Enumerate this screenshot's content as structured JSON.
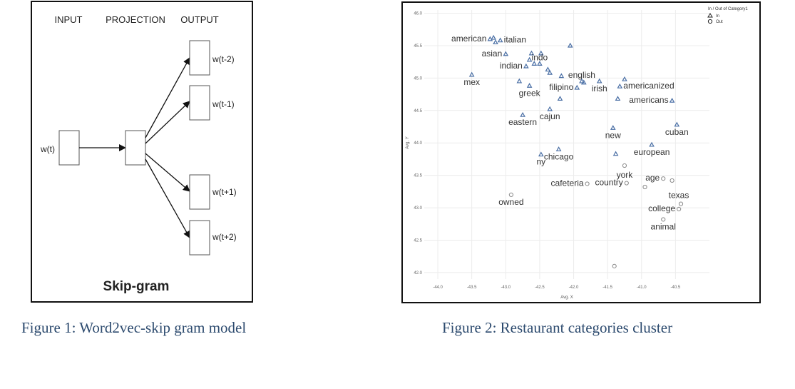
{
  "figure1": {
    "caption": "Figure 1: Word2vec-skip gram model",
    "headers": {
      "input": "INPUT",
      "projection": "PROJECTION",
      "output": "OUTPUT"
    },
    "input_label": "w(t)",
    "output_labels": [
      "w(t-2)",
      "w(t-1)",
      "w(t+1)",
      "w(t+2)"
    ],
    "title": "Skip-gram"
  },
  "figure2": {
    "caption": "Figure 2: Restaurant categories cluster",
    "chart_data": {
      "type": "scatter",
      "xlabel": "Avg. X",
      "ylabel": "Avg. Y",
      "xlim": [
        -44.2,
        -40.0
      ],
      "ylim": [
        41.9,
        46.05
      ],
      "x_ticks": [
        "-44.0",
        "-43.5",
        "-43.0",
        "-42.5",
        "-42.0",
        "-41.5",
        "-41.0",
        "-40.5"
      ],
      "y_ticks": [
        "42.0",
        "42.5",
        "43.0",
        "43.5",
        "44.0",
        "44.5",
        "45.0",
        "45.5",
        "46.0"
      ],
      "grid": true,
      "legend": {
        "title": "In / Out of Category1",
        "placement": "top-right",
        "entries": [
          {
            "name": "In",
            "marker": "triangle"
          },
          {
            "name": "Out",
            "marker": "circle"
          }
        ]
      },
      "series": [
        {
          "name": "In",
          "marker": "triangle",
          "color": "#4a6fa5",
          "points": [
            {
              "x": -43.23,
              "y": 45.6,
              "label": "american"
            },
            {
              "x": -43.18,
              "y": 45.62,
              "label": ""
            },
            {
              "x": -43.15,
              "y": 45.55,
              "label": ""
            },
            {
              "x": -43.08,
              "y": 45.58,
              "label": "italian"
            },
            {
              "x": -43.0,
              "y": 45.37,
              "label": "asian"
            },
            {
              "x": -42.62,
              "y": 45.38,
              "label": ""
            },
            {
              "x": -42.48,
              "y": 45.38,
              "label": ""
            },
            {
              "x": -42.65,
              "y": 45.28,
              "label": ""
            },
            {
              "x": -42.58,
              "y": 45.22,
              "label": ""
            },
            {
              "x": -42.5,
              "y": 45.22,
              "label": "indo"
            },
            {
              "x": -42.7,
              "y": 45.18,
              "label": "indian"
            },
            {
              "x": -42.38,
              "y": 45.13,
              "label": ""
            },
            {
              "x": -42.35,
              "y": 45.08,
              "label": ""
            },
            {
              "x": -42.05,
              "y": 45.5,
              "label": ""
            },
            {
              "x": -43.5,
              "y": 45.05,
              "label": "mex"
            },
            {
              "x": -42.8,
              "y": 44.95,
              "label": ""
            },
            {
              "x": -42.65,
              "y": 44.88,
              "label": "greek"
            },
            {
              "x": -42.18,
              "y": 45.03,
              "label": ""
            },
            {
              "x": -41.88,
              "y": 44.95,
              "label": "english"
            },
            {
              "x": -41.85,
              "y": 44.93,
              "label": ""
            },
            {
              "x": -41.95,
              "y": 44.85,
              "label": "filipino"
            },
            {
              "x": -41.62,
              "y": 44.95,
              "label": "irish"
            },
            {
              "x": -41.25,
              "y": 44.98,
              "label": ""
            },
            {
              "x": -41.32,
              "y": 44.87,
              "label": "americanized"
            },
            {
              "x": -42.2,
              "y": 44.68,
              "label": ""
            },
            {
              "x": -41.35,
              "y": 44.68,
              "label": ""
            },
            {
              "x": -40.55,
              "y": 44.65,
              "label": "americans"
            },
            {
              "x": -42.35,
              "y": 44.52,
              "label": "cajun"
            },
            {
              "x": -42.75,
              "y": 44.43,
              "label": "eastern"
            },
            {
              "x": -41.42,
              "y": 44.23,
              "label": "new"
            },
            {
              "x": -40.48,
              "y": 44.28,
              "label": "cuban"
            },
            {
              "x": -40.85,
              "y": 43.97,
              "label": "european"
            },
            {
              "x": -42.22,
              "y": 43.9,
              "label": "chicago"
            },
            {
              "x": -42.48,
              "y": 43.82,
              "label": "ny"
            },
            {
              "x": -41.38,
              "y": 43.83,
              "label": ""
            }
          ]
        },
        {
          "name": "Out",
          "marker": "circle",
          "color": "#8a8a8a",
          "points": [
            {
              "x": -41.25,
              "y": 43.65,
              "label": "york"
            },
            {
              "x": -41.22,
              "y": 43.38,
              "label": "country"
            },
            {
              "x": -41.8,
              "y": 43.37,
              "label": "cafeteria"
            },
            {
              "x": -40.68,
              "y": 43.45,
              "label": "age"
            },
            {
              "x": -40.55,
              "y": 43.42,
              "label": ""
            },
            {
              "x": -40.95,
              "y": 43.32,
              "label": ""
            },
            {
              "x": -42.92,
              "y": 43.2,
              "label": "owned"
            },
            {
              "x": -40.42,
              "y": 43.06,
              "label": "texas"
            },
            {
              "x": -40.45,
              "y": 42.98,
              "label": "college"
            },
            {
              "x": -40.68,
              "y": 42.82,
              "label": "animal"
            },
            {
              "x": -41.4,
              "y": 42.1,
              "label": ""
            }
          ]
        }
      ]
    }
  }
}
